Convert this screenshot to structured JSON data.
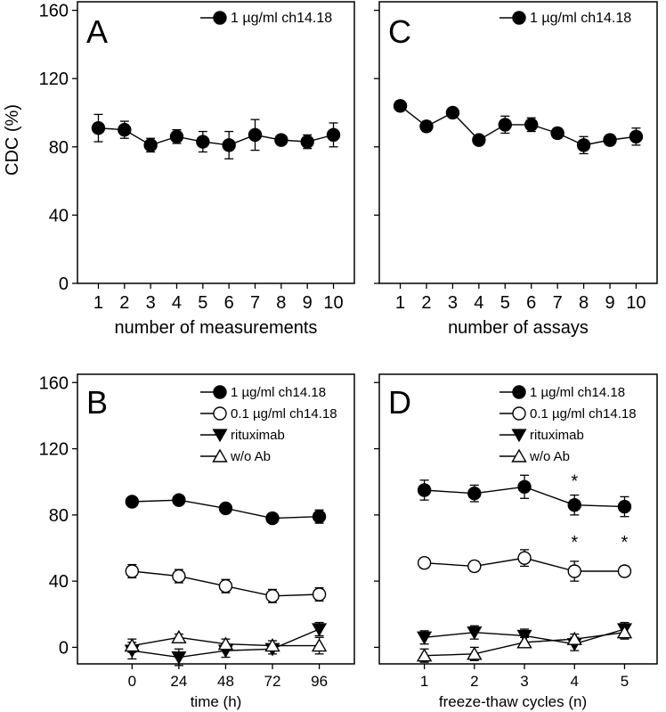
{
  "figure": {
    "ylabel": "CDC (%)"
  },
  "chart_data": [
    {
      "panel": "A",
      "type": "line",
      "xlabel": "number of measurements",
      "ylabel": "CDC (%)",
      "ylim": [
        0,
        165
      ],
      "yticks": [
        0,
        40,
        80,
        120,
        160
      ],
      "x": [
        1,
        2,
        3,
        4,
        5,
        6,
        7,
        8,
        9,
        10
      ],
      "x_ticks": [
        1,
        2,
        3,
        4,
        5,
        6,
        7,
        8,
        9,
        10
      ],
      "x_tick_labels": [
        "1",
        "2",
        "3",
        "4",
        "5",
        "6",
        "7",
        "8",
        "9",
        "10"
      ],
      "xlim": [
        0.2,
        10.8
      ],
      "legend_position": "top-right",
      "series": [
        {
          "name": "1 µg/ml ch14.18",
          "marker": "filled-circle",
          "values": [
            91,
            90,
            81,
            86,
            83,
            81,
            87,
            84,
            83,
            87
          ],
          "errors": [
            8,
            5,
            4,
            4,
            6,
            8,
            9,
            1,
            4,
            7
          ]
        }
      ],
      "annotations": []
    },
    {
      "panel": "C",
      "type": "line",
      "xlabel": "number of assays",
      "ylabel": "",
      "ylim": [
        0,
        165
      ],
      "yticks": [
        0,
        40,
        80,
        120,
        160
      ],
      "x": [
        1,
        2,
        3,
        4,
        5,
        6,
        7,
        8,
        9,
        10
      ],
      "x_ticks": [
        1,
        2,
        3,
        4,
        5,
        6,
        7,
        8,
        9,
        10
      ],
      "x_tick_labels": [
        "1",
        "2",
        "3",
        "4",
        "5",
        "6",
        "7",
        "8",
        "9",
        "10"
      ],
      "xlim": [
        0.2,
        10.8
      ],
      "legend_position": "top-right",
      "series": [
        {
          "name": "1 µg/ml ch14.18",
          "marker": "filled-circle",
          "values": [
            104,
            92,
            100,
            84,
            93,
            93,
            88,
            81,
            84,
            86
          ],
          "errors": [
            2,
            3,
            2,
            1,
            5,
            4,
            3,
            5,
            3,
            5
          ]
        }
      ],
      "annotations": []
    },
    {
      "panel": "B",
      "type": "line",
      "xlabel": "time (h)",
      "ylabel": "CDC (%)",
      "ylim": [
        -10,
        165
      ],
      "yticks": [
        0,
        40,
        80,
        120,
        160
      ],
      "x": [
        0,
        24,
        48,
        72,
        96
      ],
      "x_ticks": [
        0,
        24,
        48,
        72,
        96
      ],
      "x_tick_labels": [
        "0",
        "24",
        "48",
        "72",
        "96"
      ],
      "xlim": [
        -28,
        114
      ],
      "legend_position": "top-right",
      "series": [
        {
          "name": "1 µg/ml ch14.18",
          "marker": "filled-circle",
          "values": [
            88,
            89,
            84,
            78,
            79
          ],
          "errors": [
            2,
            2,
            2,
            2,
            4
          ]
        },
        {
          "name": "0.1 µg/ml ch14.18",
          "marker": "open-circle",
          "values": [
            46,
            43,
            37,
            31,
            32
          ],
          "errors": [
            4,
            4,
            4,
            4,
            4
          ]
        },
        {
          "name": "rituximab",
          "marker": "filled-triangle-down",
          "values": [
            -2,
            -6,
            -2,
            -1,
            11
          ],
          "errors": [
            5,
            5,
            4,
            3,
            4
          ]
        },
        {
          "name": "w/o Ab",
          "marker": "open-triangle-up",
          "values": [
            1,
            6,
            2,
            1,
            1
          ],
          "errors": [
            4,
            2,
            3,
            3,
            5
          ]
        }
      ],
      "annotations": []
    },
    {
      "panel": "D",
      "type": "line",
      "xlabel": "freeze-thaw cycles (n)",
      "ylabel": "",
      "ylim": [
        -10,
        165
      ],
      "yticks": [
        0,
        40,
        80,
        120,
        160
      ],
      "x": [
        1,
        2,
        3,
        4,
        5
      ],
      "x_ticks": [
        1,
        2,
        3,
        4,
        5
      ],
      "x_tick_labels": [
        "1",
        "2",
        "3",
        "4",
        "5"
      ],
      "xlim": [
        0.1,
        5.65
      ],
      "legend_position": "top-right",
      "series": [
        {
          "name": "1 µg/ml ch14.18",
          "marker": "filled-circle",
          "values": [
            95,
            93,
            97,
            86,
            85
          ],
          "errors": [
            6,
            5,
            7,
            6,
            6
          ]
        },
        {
          "name": "0.1 µg/ml ch14.18",
          "marker": "open-circle",
          "values": [
            51,
            49,
            54,
            46,
            46
          ],
          "errors": [
            3,
            3,
            5,
            6,
            3
          ]
        },
        {
          "name": "rituximab",
          "marker": "filled-triangle-down",
          "values": [
            6,
            9,
            7,
            2,
            11
          ],
          "errors": [
            4,
            4,
            4,
            4,
            4
          ]
        },
        {
          "name": "w/o Ab",
          "marker": "open-triangle-up",
          "values": [
            -5,
            -4,
            3,
            5,
            9
          ],
          "errors": [
            4,
            4,
            3,
            3,
            4
          ]
        }
      ],
      "annotations": [
        {
          "x": 4,
          "y": 97,
          "text": "*"
        },
        {
          "x": 4,
          "y": 60,
          "text": "*"
        },
        {
          "x": 5,
          "y": 60,
          "text": "*"
        }
      ]
    }
  ]
}
